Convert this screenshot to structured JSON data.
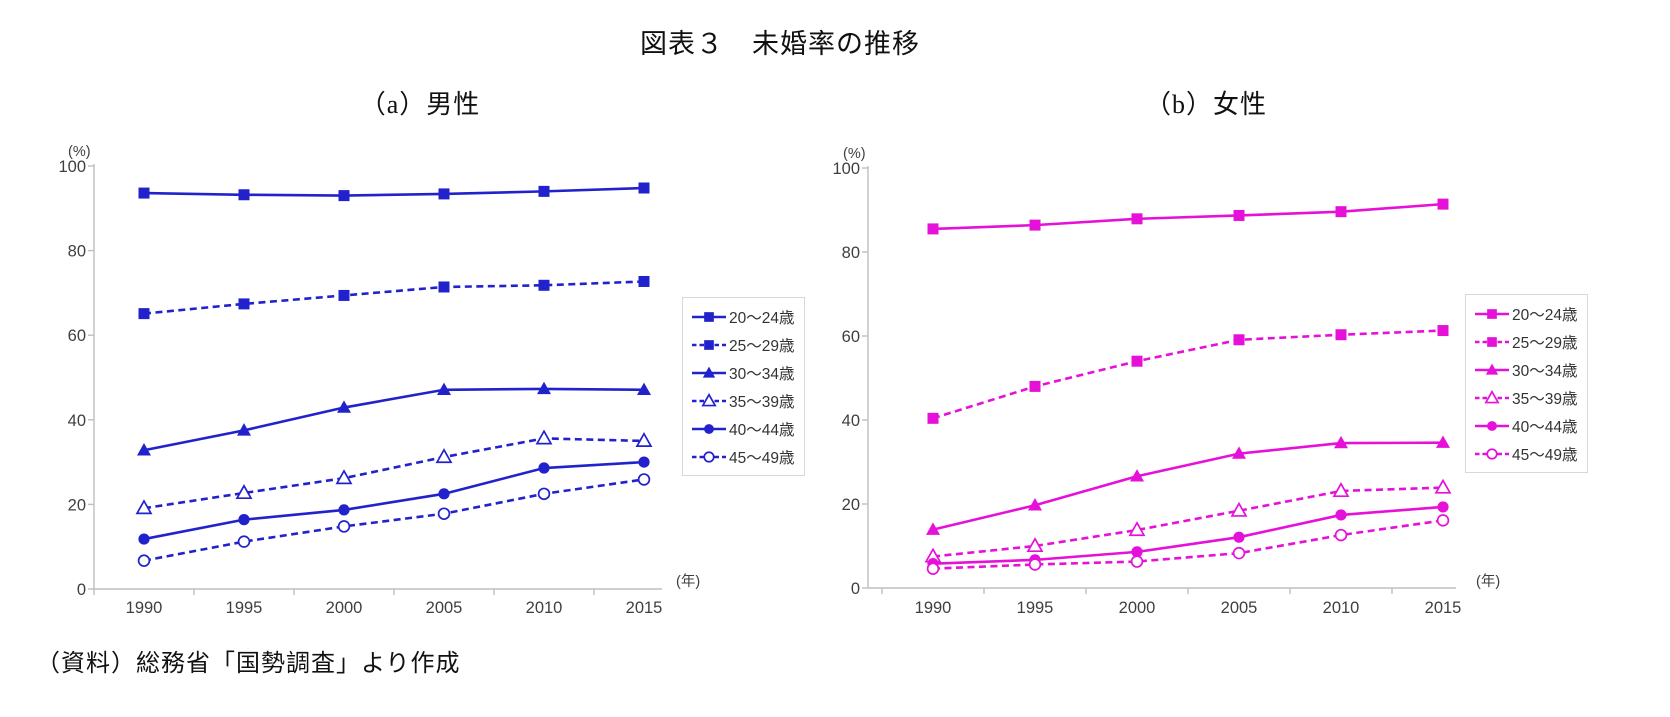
{
  "page": {
    "title": "図表３　未婚率の推移",
    "source": "（資料）総務省「国勢調査」より作成"
  },
  "chart_data": [
    {
      "type": "line",
      "title": "（a）男性",
      "color": "#2222CC",
      "y_unit": "(%)",
      "x_unit": "(年)",
      "ylim": [
        0,
        100
      ],
      "yticks": [
        0,
        20,
        40,
        60,
        80,
        100
      ],
      "grid": false,
      "legend_position": "right-outside",
      "categories": [
        "1990",
        "1995",
        "2000",
        "2005",
        "2010",
        "2015"
      ],
      "series": [
        {
          "name": "20〜24歳",
          "line": "solid",
          "marker": "square-filled",
          "values": [
            93.6,
            93.2,
            93.0,
            93.4,
            94.0,
            94.8
          ]
        },
        {
          "name": "25〜29歳",
          "line": "dashed",
          "marker": "square-filled",
          "values": [
            65.1,
            67.4,
            69.4,
            71.4,
            71.8,
            72.7
          ]
        },
        {
          "name": "30〜34歳",
          "line": "solid",
          "marker": "triangle-filled",
          "values": [
            32.8,
            37.5,
            42.9,
            47.1,
            47.3,
            47.1
          ]
        },
        {
          "name": "35〜39歳",
          "line": "dashed",
          "marker": "triangle-open",
          "values": [
            19.1,
            22.7,
            26.2,
            31.2,
            35.6,
            35.0
          ]
        },
        {
          "name": "40〜44歳",
          "line": "solid",
          "marker": "circle-filled",
          "values": [
            11.8,
            16.4,
            18.7,
            22.5,
            28.6,
            30.0
          ]
        },
        {
          "name": "45〜49歳",
          "line": "dashed",
          "marker": "circle-open",
          "values": [
            6.7,
            11.2,
            14.8,
            17.8,
            22.5,
            25.9
          ]
        }
      ]
    },
    {
      "type": "line",
      "title": "（b）女性",
      "color": "#E611D8",
      "y_unit": "(%)",
      "x_unit": "(年)",
      "ylim": [
        0,
        100
      ],
      "yticks": [
        0,
        20,
        40,
        60,
        80,
        100
      ],
      "grid": false,
      "legend_position": "right-outside",
      "categories": [
        "1990",
        "1995",
        "2000",
        "2005",
        "2010",
        "2015"
      ],
      "series": [
        {
          "name": "20〜24歳",
          "line": "solid",
          "marker": "square-filled",
          "values": [
            85.5,
            86.4,
            87.9,
            88.7,
            89.6,
            91.4
          ]
        },
        {
          "name": "25〜29歳",
          "line": "dashed",
          "marker": "square-filled",
          "values": [
            40.4,
            48.0,
            54.0,
            59.1,
            60.3,
            61.3
          ]
        },
        {
          "name": "30〜34歳",
          "line": "solid",
          "marker": "triangle-filled",
          "values": [
            13.9,
            19.7,
            26.6,
            32.0,
            34.5,
            34.6
          ]
        },
        {
          "name": "35〜39歳",
          "line": "dashed",
          "marker": "triangle-open",
          "values": [
            7.5,
            10.0,
            13.8,
            18.4,
            23.1,
            23.9
          ]
        },
        {
          "name": "40〜44歳",
          "line": "solid",
          "marker": "circle-filled",
          "values": [
            5.8,
            6.7,
            8.6,
            12.1,
            17.4,
            19.3
          ]
        },
        {
          "name": "45〜49歳",
          "line": "dashed",
          "marker": "circle-open",
          "values": [
            4.6,
            5.6,
            6.3,
            8.3,
            12.6,
            16.1
          ]
        }
      ]
    }
  ]
}
